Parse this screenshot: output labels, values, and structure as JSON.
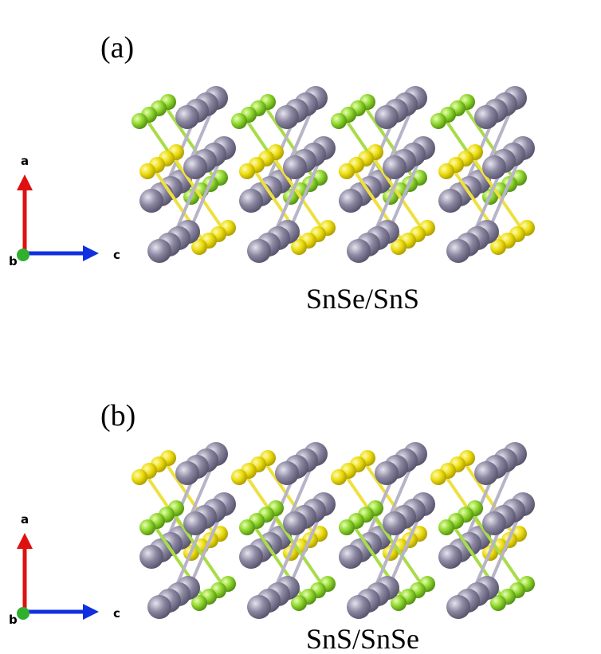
{
  "panels": [
    {
      "label": "(a)",
      "axes": {
        "vertical": "a",
        "out": "b",
        "horizontal": "c"
      },
      "caption": "SnSe/SnS"
    },
    {
      "label": "(b)",
      "axes": {
        "vertical": "a",
        "out": "b",
        "horizontal": "c"
      },
      "caption": "SnS/SnSe"
    }
  ]
}
